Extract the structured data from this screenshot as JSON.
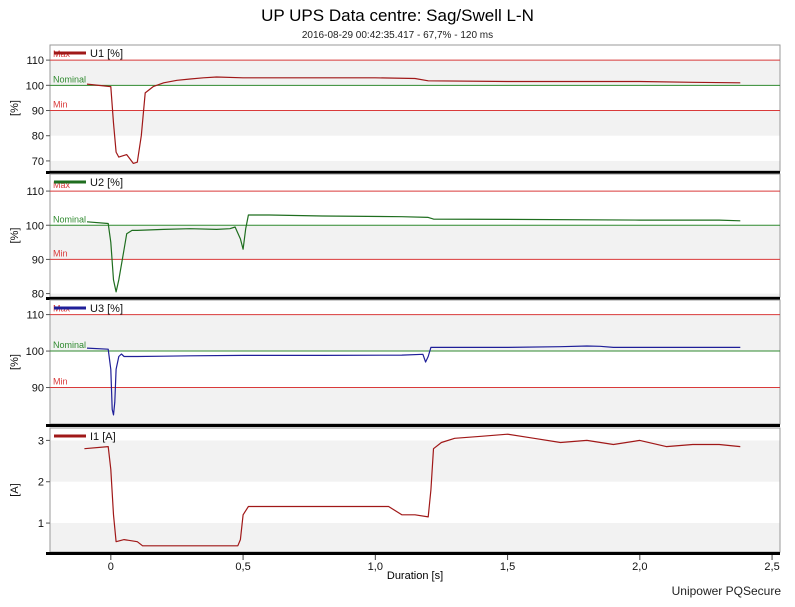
{
  "page": {
    "title": "UP UPS Data centre: Sag/Swell L-N",
    "subtitle": "2016-08-29 00:42:35.417 - 67,7% - 120 ms",
    "footer": "Unipower PQSecure"
  },
  "chart_data": {
    "type": "line",
    "xlabel": "Duration [s]",
    "xlim": [
      -0.23,
      2.53
    ],
    "x_ticks": [
      0,
      0.5,
      1.0,
      1.5,
      2.0,
      2.5
    ],
    "x_tick_labels": [
      "0",
      "0,5",
      "1,0",
      "1,5",
      "2,0",
      "2,5"
    ],
    "panels": [
      {
        "id": "u1",
        "ylabel": "[%]",
        "ylim": [
          66,
          116
        ],
        "y_ticks": [
          70,
          80,
          90,
          100,
          110
        ],
        "y_tick_labels": [
          "70",
          "80",
          "90",
          "100",
          "110"
        ],
        "series": {
          "name": "U1 [%]",
          "color": "#a01818",
          "x": [
            -0.09,
            0.0,
            0.01,
            0.02,
            0.03,
            0.06,
            0.085,
            0.1,
            0.115,
            0.13,
            0.16,
            0.2,
            0.25,
            0.3,
            0.35,
            0.4,
            0.5,
            0.6,
            1.0,
            1.15,
            1.2,
            1.5,
            2.0,
            2.2,
            2.38
          ],
          "y": [
            100.5,
            99.5,
            85,
            73.5,
            71.5,
            72.5,
            69,
            69.5,
            80,
            97,
            99.5,
            101,
            102,
            102.5,
            103,
            103.3,
            103,
            103,
            103,
            102.7,
            101.8,
            101.5,
            101.5,
            101.2,
            101
          ]
        },
        "reflines": [
          {
            "label": "Max",
            "value": 110,
            "color": "#d93a3a"
          },
          {
            "label": "Nominal",
            "value": 100,
            "color": "#2f8a2f"
          },
          {
            "label": "Min",
            "value": 90,
            "color": "#d93a3a"
          }
        ]
      },
      {
        "id": "u2",
        "ylabel": "[%]",
        "ylim": [
          79,
          115
        ],
        "y_ticks": [
          80,
          90,
          100,
          110
        ],
        "y_tick_labels": [
          "80",
          "90",
          "100",
          "110"
        ],
        "series": {
          "name": "U2 [%]",
          "color": "#1f6e1f",
          "x": [
            -0.09,
            -0.01,
            0.0,
            0.01,
            0.02,
            0.03,
            0.05,
            0.06,
            0.08,
            0.1,
            0.2,
            0.3,
            0.4,
            0.45,
            0.47,
            0.49,
            0.5,
            0.51,
            0.52,
            0.6,
            0.8,
            1.1,
            1.2,
            1.22,
            1.5,
            2.0,
            2.3,
            2.38
          ],
          "y": [
            101,
            100.5,
            95,
            84,
            80.5,
            84,
            93,
            97.5,
            98.5,
            98.5,
            98.8,
            99,
            98.8,
            99,
            99.5,
            96,
            93,
            99,
            103,
            103,
            102.7,
            102.5,
            102.3,
            101.8,
            101.7,
            101.5,
            101.5,
            101.3
          ]
        },
        "reflines": [
          {
            "label": "Max",
            "value": 110,
            "color": "#d93a3a"
          },
          {
            "label": "Nominal",
            "value": 100,
            "color": "#2f8a2f"
          },
          {
            "label": "Min",
            "value": 90,
            "color": "#d93a3a"
          }
        ]
      },
      {
        "id": "u3",
        "ylabel": "[%]",
        "ylim": [
          80,
          114
        ],
        "y_ticks": [
          90,
          100,
          110
        ],
        "y_tick_labels": [
          "90",
          "100",
          "110"
        ],
        "series": {
          "name": "U3 [%]",
          "color": "#1f1f99",
          "x": [
            -0.09,
            -0.01,
            0.0,
            0.005,
            0.01,
            0.015,
            0.02,
            0.03,
            0.04,
            0.05,
            0.1,
            0.2,
            0.3,
            0.5,
            0.8,
            1.1,
            1.18,
            1.19,
            1.2,
            1.21,
            1.22,
            1.5,
            1.7,
            1.8,
            1.85,
            1.9,
            2.38
          ],
          "y": [
            100.8,
            100.5,
            95,
            84,
            82.5,
            86,
            95,
            98.5,
            99.2,
            98.5,
            98.5,
            98.6,
            98.7,
            98.8,
            98.8,
            98.9,
            99.1,
            97,
            98.5,
            101,
            101,
            101,
            101.2,
            101.4,
            101.3,
            101,
            101
          ]
        },
        "reflines": [
          {
            "label": "Max",
            "value": 110,
            "color": "#d93a3a"
          },
          {
            "label": "Nominal",
            "value": 100,
            "color": "#2f8a2f"
          },
          {
            "label": "Min",
            "value": 90,
            "color": "#d93a3a"
          }
        ]
      },
      {
        "id": "i1",
        "ylabel": "[A]",
        "ylim": [
          0.3,
          3.3
        ],
        "y_ticks": [
          1,
          2,
          3
        ],
        "y_tick_labels": [
          "1",
          "2",
          "3"
        ],
        "series": {
          "name": "I1 [A]",
          "color": "#a01818",
          "x": [
            -0.1,
            -0.01,
            0.0,
            0.01,
            0.02,
            0.05,
            0.1,
            0.12,
            0.2,
            0.3,
            0.4,
            0.48,
            0.49,
            0.5,
            0.52,
            0.6,
            0.8,
            1.0,
            1.05,
            1.1,
            1.15,
            1.2,
            1.21,
            1.22,
            1.25,
            1.3,
            1.4,
            1.5,
            1.6,
            1.7,
            1.8,
            1.9,
            2.0,
            2.1,
            2.2,
            2.3,
            2.38
          ],
          "y": [
            2.8,
            2.85,
            2.3,
            1.2,
            0.55,
            0.6,
            0.55,
            0.45,
            0.45,
            0.45,
            0.45,
            0.45,
            0.6,
            1.2,
            1.4,
            1.4,
            1.4,
            1.4,
            1.4,
            1.2,
            1.2,
            1.15,
            1.8,
            2.8,
            2.95,
            3.05,
            3.1,
            3.15,
            3.05,
            2.95,
            3.0,
            2.9,
            3.0,
            2.85,
            2.9,
            2.9,
            2.85
          ]
        },
        "reflines": []
      }
    ]
  }
}
